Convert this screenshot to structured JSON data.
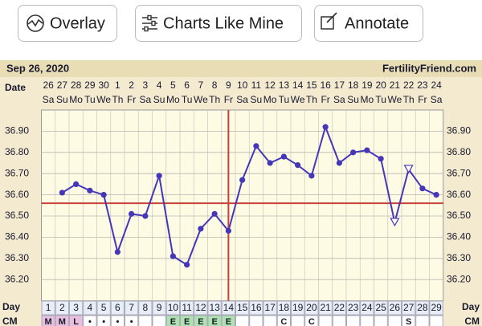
{
  "buttons": [
    "Overlay",
    "Charts Like Mine",
    "Annotate"
  ],
  "chart_data": {
    "type": "line",
    "title": "Sep 26, 2020",
    "site": "FertilityFriend.com",
    "date_label": "Date",
    "categories": [
      "26",
      "27",
      "28",
      "29",
      "30",
      "1",
      "2",
      "3",
      "4",
      "5",
      "6",
      "7",
      "8",
      "9",
      "10",
      "11",
      "12",
      "13",
      "14",
      "15",
      "16",
      "17",
      "18",
      "19",
      "20",
      "21",
      "22",
      "23",
      "24"
    ],
    "weekdays": [
      "Sa",
      "Su",
      "Mo",
      "Tu",
      "We",
      "Th",
      "Fr",
      "Sa",
      "Su",
      "Mo",
      "Tu",
      "We",
      "Th",
      "Fr",
      "Sa",
      "Su",
      "Mo",
      "Tu",
      "We",
      "Th",
      "Fr",
      "Sa",
      "Su",
      "Mo",
      "Tu",
      "We",
      "Th",
      "Fr",
      "Sa"
    ],
    "day_label": "Day",
    "days": [
      1,
      2,
      3,
      4,
      5,
      6,
      7,
      8,
      9,
      10,
      11,
      12,
      13,
      14,
      15,
      16,
      17,
      18,
      19,
      20,
      21,
      22,
      23,
      24,
      25,
      26,
      27,
      28,
      29
    ],
    "cm_label": "CM",
    "cm": [
      "M",
      "M",
      "L",
      "•",
      "•",
      "•",
      "•",
      null,
      null,
      "E",
      "E",
      "E",
      "E",
      "E",
      null,
      null,
      null,
      "C",
      null,
      "C",
      null,
      null,
      null,
      null,
      null,
      null,
      "S",
      null,
      null
    ],
    "values": [
      null,
      36.61,
      36.65,
      36.62,
      36.6,
      36.33,
      36.51,
      36.5,
      36.69,
      36.31,
      36.27,
      36.44,
      36.51,
      36.43,
      36.67,
      36.83,
      36.75,
      36.78,
      36.74,
      36.69,
      36.92,
      36.75,
      36.8,
      36.81,
      36.77,
      36.47,
      36.72,
      36.63,
      36.6
    ],
    "markers": [
      "dot",
      "dot",
      "dot",
      "dot",
      "dot",
      "dot",
      "dot",
      "dot",
      "dot",
      "dot",
      "dot",
      "dot",
      "dot",
      "dot",
      "dot",
      "dot",
      "dot",
      "dot",
      "dot",
      "dot",
      "dot",
      "dot",
      "dot",
      "dot",
      "dot",
      "triangle",
      "triangle",
      "dot",
      "dot"
    ],
    "color": "#4636b8",
    "coverline": 36.56,
    "ovulation_day": 14,
    "marker_line_color": "#c9403a",
    "ylim": [
      36.1,
      37.0
    ],
    "yticks": [
      {
        "value": 36.2,
        "label": "36.20"
      },
      {
        "value": 36.3,
        "label": "36.30"
      },
      {
        "value": 36.4,
        "label": "36.40"
      },
      {
        "value": 36.5,
        "label": "36.50"
      },
      {
        "value": 36.6,
        "label": "36.60"
      },
      {
        "value": 36.7,
        "label": "36.70"
      },
      {
        "value": 36.8,
        "label": "36.80"
      },
      {
        "value": 36.9,
        "label": "36.90"
      }
    ],
    "grid": true
  }
}
